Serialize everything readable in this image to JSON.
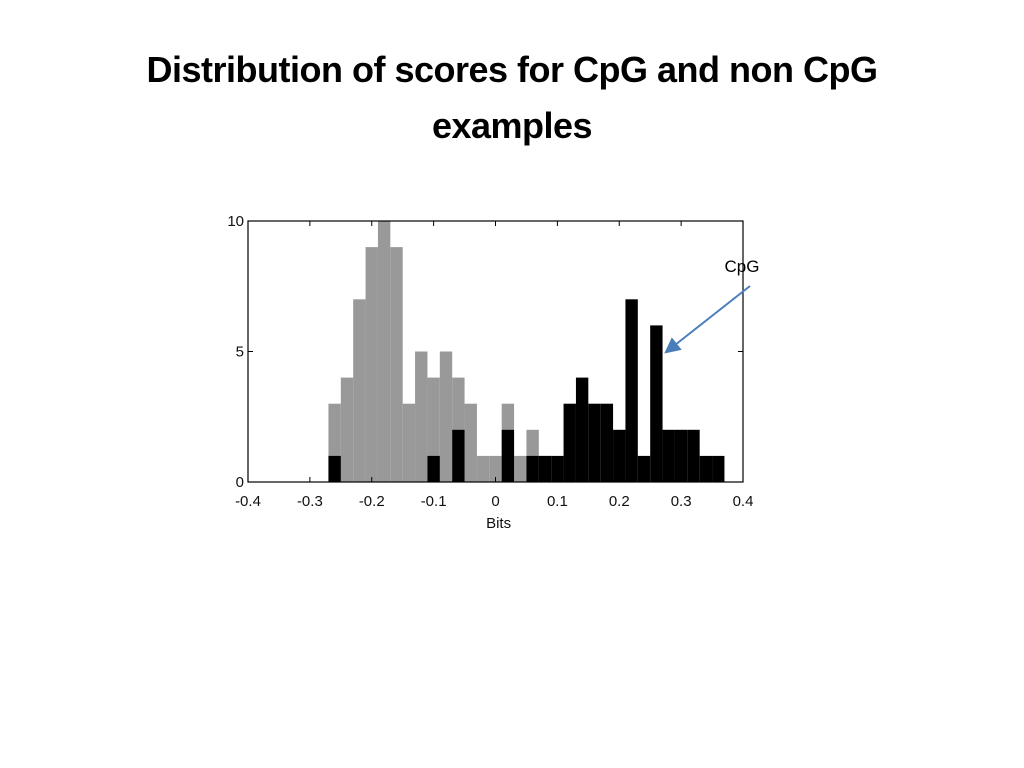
{
  "slide": {
    "title_line1": "Distribution of scores for CpG and non CpG",
    "title_line2": "examples"
  },
  "chart_data": {
    "type": "bar",
    "title": "",
    "xlabel": "Bits",
    "ylabel": "",
    "xlim": [
      -0.4,
      0.4
    ],
    "ylim": [
      0,
      10
    ],
    "grid": false,
    "bin_width": 0.02,
    "x_ticks": [
      {
        "value": -0.4,
        "label": "-0.4"
      },
      {
        "value": -0.3,
        "label": "-0.3"
      },
      {
        "value": -0.2,
        "label": "-0.2"
      },
      {
        "value": -0.1,
        "label": "-0.1"
      },
      {
        "value": 0,
        "label": "0"
      },
      {
        "value": 0.1,
        "label": "0.1"
      },
      {
        "value": 0.2,
        "label": "0.2"
      },
      {
        "value": 0.3,
        "label": "0.3"
      },
      {
        "value": 0.4,
        "label": "0.4"
      }
    ],
    "y_ticks": [
      {
        "value": 0,
        "label": "0"
      },
      {
        "value": 5,
        "label": "5"
      },
      {
        "value": 10,
        "label": "10"
      }
    ],
    "series": [
      {
        "name": "",
        "color": "#999999",
        "bins": [
          {
            "x0": -0.27,
            "value": 3
          },
          {
            "x0": -0.25,
            "value": 4
          },
          {
            "x0": -0.23,
            "value": 7
          },
          {
            "x0": -0.21,
            "value": 9
          },
          {
            "x0": -0.19,
            "value": 10
          },
          {
            "x0": -0.17,
            "value": 9
          },
          {
            "x0": -0.15,
            "value": 3
          },
          {
            "x0": -0.13,
            "value": 5
          },
          {
            "x0": -0.11,
            "value": 4
          },
          {
            "x0": -0.09,
            "value": 5
          },
          {
            "x0": -0.07,
            "value": 4
          },
          {
            "x0": -0.05,
            "value": 3
          },
          {
            "x0": -0.03,
            "value": 1
          },
          {
            "x0": -0.01,
            "value": 1
          },
          {
            "x0": 0.01,
            "value": 3
          },
          {
            "x0": 0.03,
            "value": 1
          },
          {
            "x0": 0.05,
            "value": 2
          },
          {
            "x0": 0.07,
            "value": 1
          }
        ]
      },
      {
        "name": "",
        "color": "#000000",
        "bins": [
          {
            "x0": -0.27,
            "value": 1
          },
          {
            "x0": -0.11,
            "value": 1
          },
          {
            "x0": -0.07,
            "value": 2
          },
          {
            "x0": 0.01,
            "value": 2
          },
          {
            "x0": 0.05,
            "value": 1
          },
          {
            "x0": 0.07,
            "value": 1
          },
          {
            "x0": 0.09,
            "value": 1
          },
          {
            "x0": 0.11,
            "value": 3
          },
          {
            "x0": 0.13,
            "value": 4
          },
          {
            "x0": 0.15,
            "value": 3
          },
          {
            "x0": 0.17,
            "value": 3
          },
          {
            "x0": 0.19,
            "value": 2
          },
          {
            "x0": 0.21,
            "value": 7
          },
          {
            "x0": 0.23,
            "value": 1
          },
          {
            "x0": 0.25,
            "value": 6
          },
          {
            "x0": 0.27,
            "value": 2
          },
          {
            "x0": 0.29,
            "value": 2
          },
          {
            "x0": 0.31,
            "value": 2
          },
          {
            "x0": 0.33,
            "value": 1
          },
          {
            "x0": 0.35,
            "value": 1
          }
        ]
      }
    ],
    "annotations": [
      {
        "text": "CpG",
        "arrow_color": "#4a7ebb",
        "points_to": {
          "x": 0.28,
          "y": 5
        }
      }
    ]
  }
}
